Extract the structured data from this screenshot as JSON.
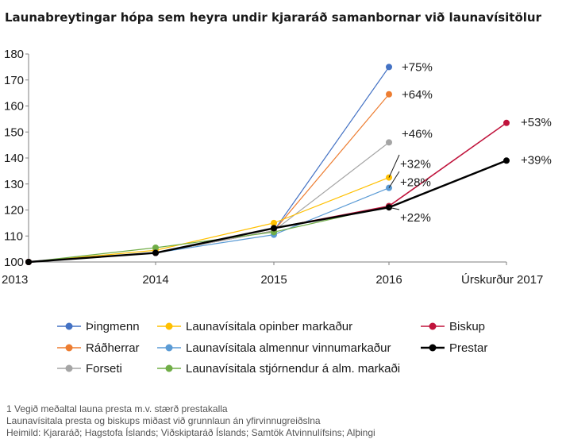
{
  "chart_data": {
    "type": "line",
    "title": "Launabreytingar hópa sem heyra undir kjararáð samanbornar við launavísitölur",
    "categories": [
      "2013",
      "2014",
      "2015",
      "2016",
      "Úrskurður 2017"
    ],
    "ylim": [
      100,
      180
    ],
    "yticks": [
      100,
      110,
      120,
      130,
      140,
      150,
      160,
      170,
      180
    ],
    "grid": false,
    "legend_position": "bottom",
    "series": [
      {
        "name": "Þingmenn",
        "color": "#4472c4",
        "width": 1.2,
        "values": [
          100,
          103.5,
          112,
          175,
          null
        ]
      },
      {
        "name": "Ráðherrar",
        "color": "#ed7d31",
        "width": 1.2,
        "values": [
          100,
          103.5,
          112,
          164.5,
          null
        ]
      },
      {
        "name": "Forseti",
        "color": "#a5a5a5",
        "width": 1.2,
        "values": [
          100,
          103.5,
          112,
          146,
          null
        ]
      },
      {
        "name": "Launavísitala opinber markaður",
        "color": "#ffc000",
        "width": 1.2,
        "values": [
          100,
          104.5,
          115,
          132.5,
          null
        ]
      },
      {
        "name": "Launavísitala almennur vinnumarkaður",
        "color": "#5b9bd5",
        "width": 1.2,
        "values": [
          100,
          103.5,
          110.5,
          128.5,
          null
        ]
      },
      {
        "name": "Launavísitala stjórnendur á alm. markaði",
        "color": "#70ad47",
        "width": 1.2,
        "values": [
          100,
          105.5,
          111.5,
          121.5,
          null
        ]
      },
      {
        "name": "Biskup",
        "color": "#c0143c",
        "width": 1.6,
        "values": [
          100,
          103.5,
          113,
          121.5,
          153.5
        ]
      },
      {
        "name": "Prestar",
        "color": "#000000",
        "width": 2.4,
        "values": [
          100,
          103.5,
          113,
          121,
          139
        ]
      }
    ],
    "annotations": [
      {
        "text": "+75%",
        "category": 3,
        "y": 175
      },
      {
        "text": "+64%",
        "category": 3,
        "y": 164.5
      },
      {
        "text": "+46%",
        "category": 3,
        "y": 146
      },
      {
        "text": "+32%",
        "category": 3,
        "y": 132.5
      },
      {
        "text": "+28%",
        "category": 3,
        "y": 128.5
      },
      {
        "text": "+22%",
        "category": 3,
        "y": 121
      },
      {
        "text": "+53%",
        "category": 4,
        "y": 153.5
      },
      {
        "text": "+39%",
        "category": 4,
        "y": 139
      }
    ],
    "legend_order": [
      "Þingmenn",
      "Launavísitala opinber markaður",
      "Biskup",
      "Ráðherrar",
      "Launavísitala almennur vinnumarkaður",
      "Prestar",
      "Forseti",
      "Launavísitala stjórnendur á alm. markaði"
    ]
  },
  "footnotes": [
    "1 Vegið meðaltal launa presta m.v. stærð prestakalla",
    "Launavísitala presta og biskups miðast við grunnlaun án yfirvinnugreiðslna",
    "Heimild: Kjararáð; Hagstofa Íslands; Viðskiptaráð Íslands; Samtök Atvinnulífsins; Alþingi"
  ]
}
